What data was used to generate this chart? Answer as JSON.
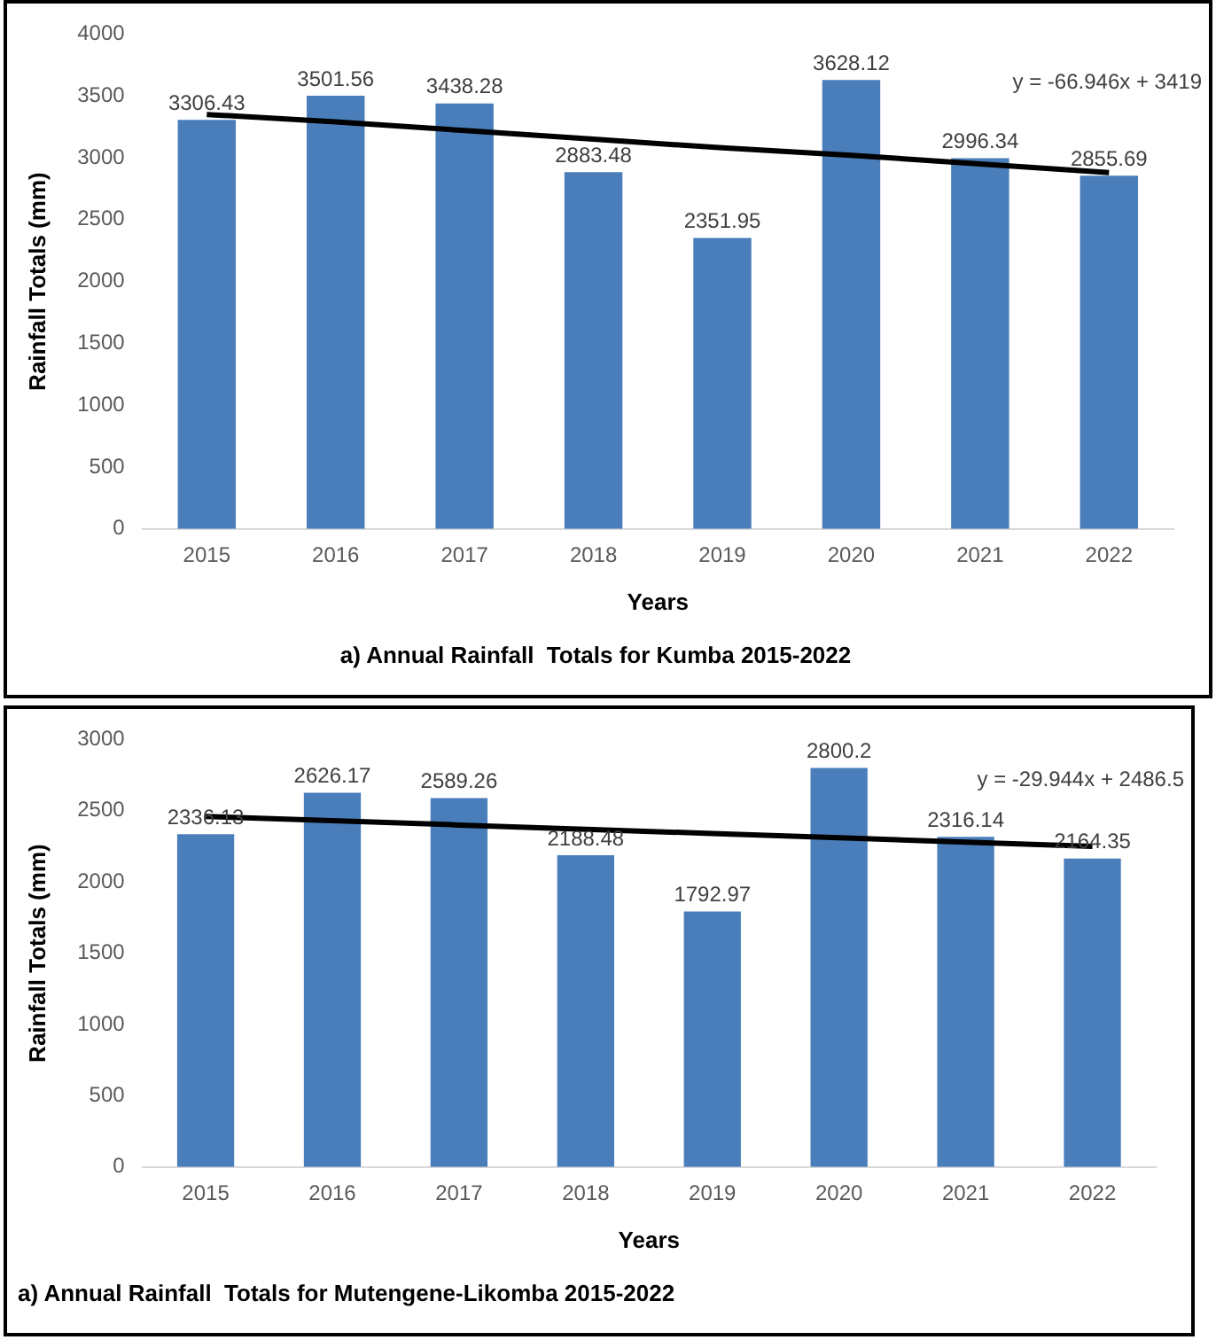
{
  "chart_data": [
    {
      "type": "bar",
      "title": "a) Annual Rainfall  Totals for Kumba 2015-2022",
      "xlabel": "Years",
      "ylabel": "Rainfall Totals (mm)",
      "categories": [
        "2015",
        "2016",
        "2017",
        "2018",
        "2019",
        "2020",
        "2021",
        "2022"
      ],
      "series": [
        {
          "color": "#4a7ebb",
          "values": [
            3306.43,
            3501.56,
            3438.28,
            2883.48,
            2351.95,
            3628.12,
            2996.34,
            2855.69
          ],
          "value_labels": [
            "3306.43",
            "3501.56",
            "3438.28",
            "2883.48",
            "2351.95",
            "3628.12",
            "2996.34",
            "2855.69"
          ]
        },
        {
          "type": "line",
          "color": "#000000",
          "values": [
            3350,
            3290,
            3220,
            3150,
            3080,
            3020,
            2950,
            2880
          ]
        }
      ],
      "annotations": [
        "y = -66.946x + 3419"
      ],
      "ylim": [
        0,
        4000
      ],
      "yticks": [
        0,
        500,
        1000,
        1500,
        2000,
        2500,
        3000,
        3500,
        4000
      ],
      "grid": false,
      "legend": false
    },
    {
      "type": "bar",
      "title": "a) Annual Rainfall  Totals for Mutengene-Likomba 2015-2022",
      "xlabel": "Years",
      "ylabel": "Rainfall Totals (mm)",
      "categories": [
        "2015",
        "2016",
        "2017",
        "2018",
        "2019",
        "2020",
        "2021",
        "2022"
      ],
      "series": [
        {
          "color": "#4a7ebb",
          "values": [
            2336.13,
            2626.17,
            2589.26,
            2188.48,
            1792.97,
            2800.2,
            2316.14,
            2164.35
          ],
          "value_labels": [
            "2336.13",
            "2626.17",
            "2589.26",
            "2188.48",
            "1792.97",
            "2800.2",
            "2316.14",
            "2164.35"
          ]
        },
        {
          "type": "line",
          "color": "#000000",
          "values": [
            2460,
            2430,
            2400,
            2370,
            2340,
            2310,
            2280,
            2250
          ]
        }
      ],
      "annotations": [
        "y = -29.944x + 2486.5"
      ],
      "ylim": [
        0,
        3000
      ],
      "yticks": [
        0,
        500,
        1000,
        1500,
        2000,
        2500,
        3000
      ],
      "grid": false,
      "legend": false
    }
  ]
}
